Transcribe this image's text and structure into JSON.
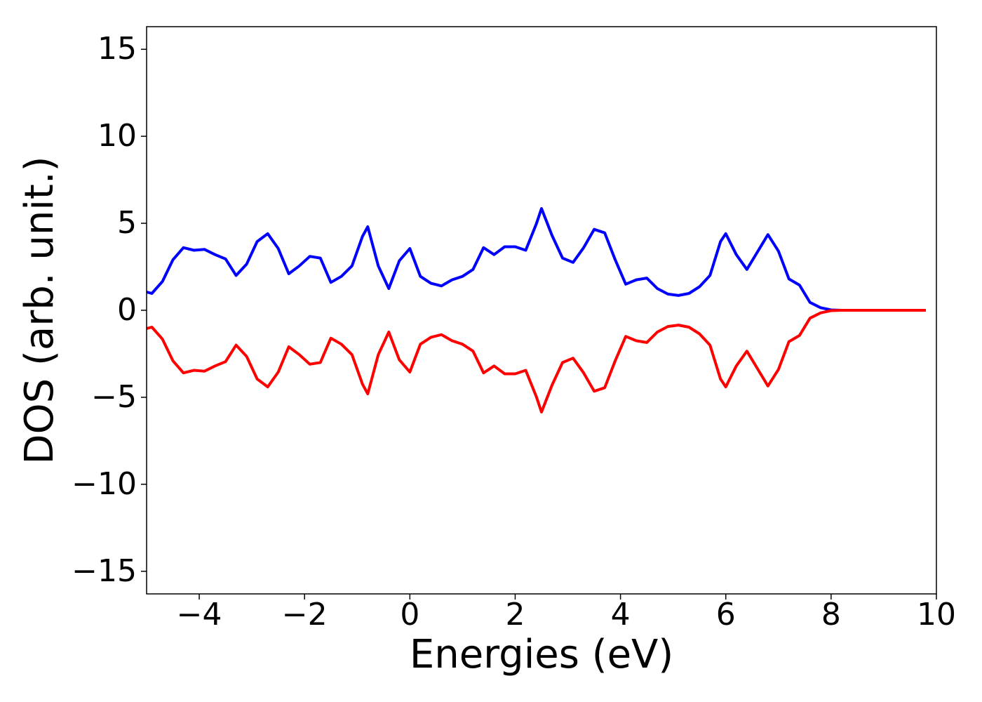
{
  "chart_data": {
    "type": "line",
    "x_label": "Energies (eV)",
    "y_label": "DOS (arb. unit.)",
    "x": [
      -5,
      -4.9,
      -4.7,
      -4.5,
      -4.3,
      -4.1,
      -3.9,
      -3.7,
      -3.5,
      -3.3,
      -3.1,
      -2.9,
      -2.7,
      -2.5,
      -2.3,
      -2.1,
      -1.9,
      -1.7,
      -1.5,
      -1.3,
      -1.1,
      -0.9,
      -0.8,
      -0.6,
      -0.4,
      -0.2,
      0,
      0.2,
      0.4,
      0.6,
      0.8,
      1.0,
      1.2,
      1.4,
      1.6,
      1.8,
      2.0,
      2.2,
      2.4,
      2.5,
      2.7,
      2.9,
      3.1,
      3.3,
      3.5,
      3.7,
      3.9,
      4.1,
      4.3,
      4.5,
      4.7,
      4.9,
      5.1,
      5.3,
      5.5,
      5.7,
      5.9,
      6.0,
      6.2,
      6.4,
      6.6,
      6.8,
      7.0,
      7.2,
      7.4,
      7.6,
      7.8,
      8.0,
      8.2,
      9.8
    ],
    "series": [
      {
        "color": "#0000ff",
        "values": [
          1.05,
          0.97,
          1.65,
          2.9,
          3.6,
          3.45,
          3.5,
          3.2,
          2.95,
          2.0,
          2.65,
          3.95,
          4.4,
          3.55,
          2.1,
          2.55,
          3.1,
          3.0,
          1.6,
          1.95,
          2.55,
          4.25,
          4.8,
          2.55,
          1.25,
          2.85,
          3.55,
          1.95,
          1.55,
          1.4,
          1.75,
          1.95,
          2.35,
          3.6,
          3.2,
          3.65,
          3.65,
          3.45,
          4.95,
          5.85,
          4.3,
          3.0,
          2.75,
          3.6,
          4.65,
          4.45,
          2.9,
          1.5,
          1.75,
          1.85,
          1.25,
          0.93,
          0.85,
          0.97,
          1.35,
          2.0,
          3.95,
          4.4,
          3.2,
          2.35,
          3.35,
          4.35,
          3.4,
          1.8,
          1.45,
          0.45,
          0.15,
          0.02,
          0,
          0
        ]
      },
      {
        "color": "#ff0000",
        "values": [
          -1.05,
          -0.97,
          -1.65,
          -2.9,
          -3.6,
          -3.45,
          -3.5,
          -3.2,
          -2.95,
          -2.0,
          -2.65,
          -3.95,
          -4.4,
          -3.55,
          -2.1,
          -2.55,
          -3.1,
          -3.0,
          -1.6,
          -1.95,
          -2.55,
          -4.25,
          -4.8,
          -2.55,
          -1.25,
          -2.85,
          -3.55,
          -1.95,
          -1.55,
          -1.4,
          -1.75,
          -1.95,
          -2.35,
          -3.6,
          -3.2,
          -3.65,
          -3.65,
          -3.45,
          -4.95,
          -5.85,
          -4.3,
          -3.0,
          -2.75,
          -3.6,
          -4.65,
          -4.45,
          -2.9,
          -1.5,
          -1.75,
          -1.85,
          -1.25,
          -0.93,
          -0.85,
          -0.97,
          -1.35,
          -2.0,
          -3.95,
          -4.4,
          -3.2,
          -2.35,
          -3.35,
          -4.35,
          -3.4,
          -1.8,
          -1.45,
          -0.45,
          -0.15,
          -0.02,
          0,
          0
        ]
      }
    ],
    "xlim": [
      -5,
      10
    ],
    "xticks": [
      {
        "value": -4,
        "label": "−4"
      },
      {
        "value": -2,
        "label": "−2"
      },
      0,
      2,
      4,
      6,
      8,
      10
    ],
    "ylim": [
      -16.3,
      16.3
    ],
    "yticks": [
      {
        "value": -15,
        "label": "−15"
      },
      {
        "value": -10,
        "label": "−10"
      },
      {
        "value": -5,
        "label": "−5"
      },
      0,
      5,
      10,
      15
    ],
    "grid": false
  }
}
